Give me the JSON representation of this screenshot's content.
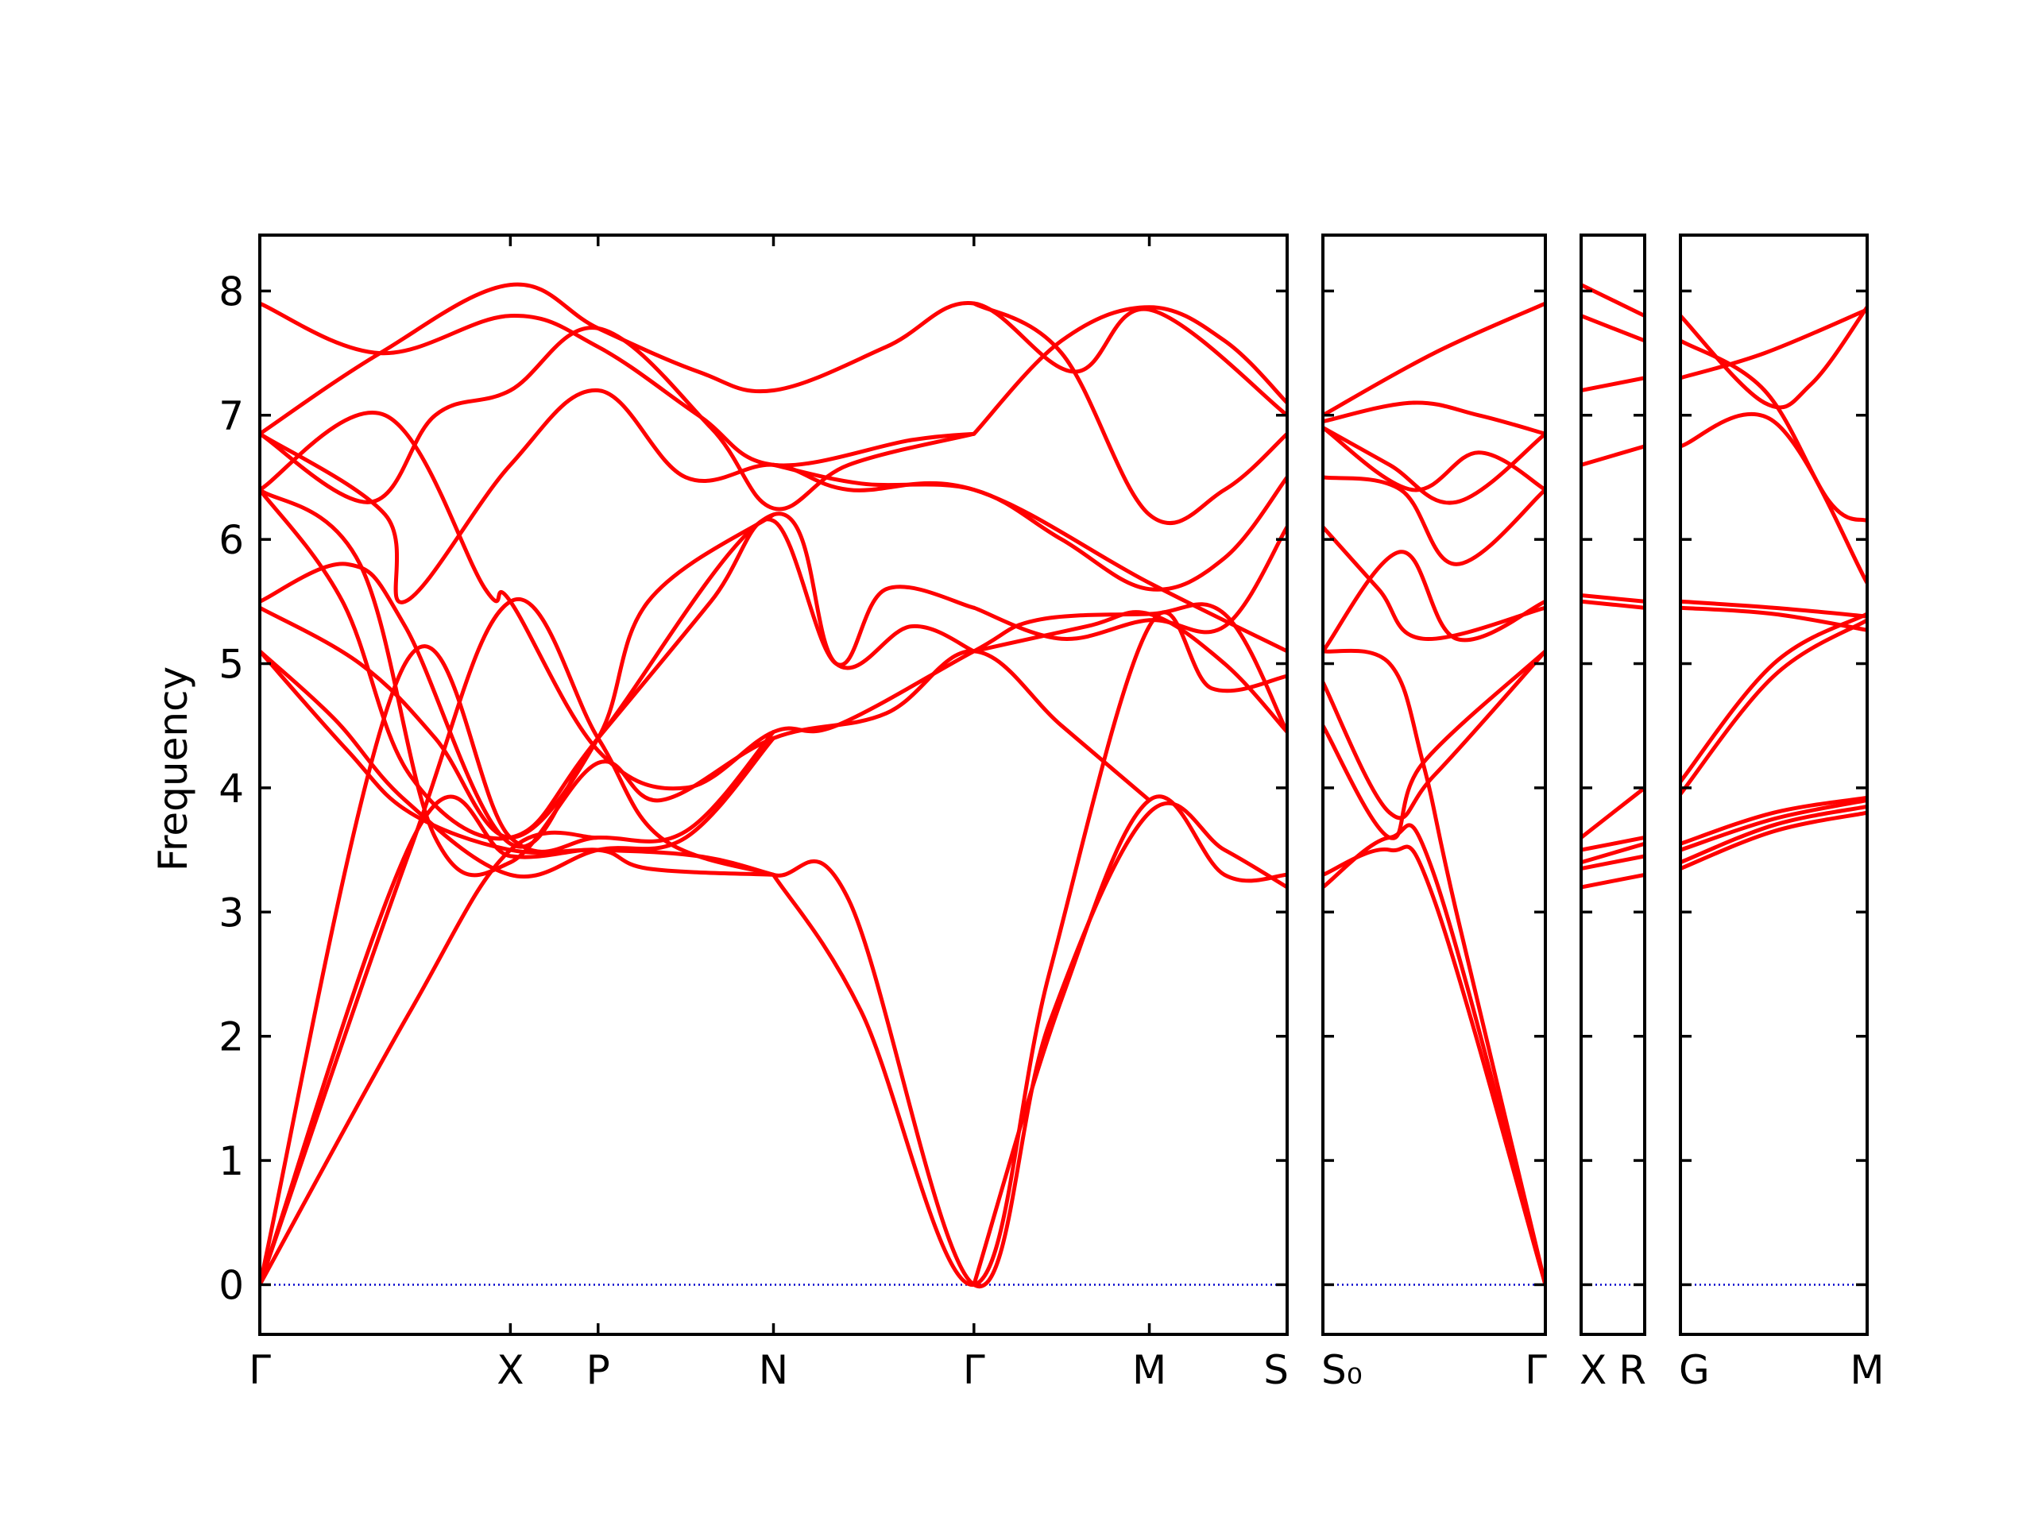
{
  "chart_data": {
    "type": "line",
    "title": "",
    "xlabel": "",
    "ylabel": "Frequency",
    "ylim": [
      -0.4,
      8.45
    ],
    "yticks": [
      0,
      1,
      2,
      3,
      4,
      5,
      6,
      7,
      8
    ],
    "zero_line_color": "#0000cc",
    "band_color": "#ff0000",
    "panels": [
      {
        "name": "panel-1",
        "kpoints": [
          {
            "label": "Γ",
            "pos": 0.0
          },
          {
            "label": "X",
            "pos": 1.0
          },
          {
            "label": "P",
            "pos": 1.35
          },
          {
            "label": "N",
            "pos": 2.05
          },
          {
            "label": "Γ",
            "pos": 2.85
          },
          {
            "label": "M",
            "pos": 3.55
          },
          {
            "label": "S",
            "pos": 4.1
          }
        ],
        "bands": [
          {
            "x": [
              0,
              0.6,
              1.0,
              1.35
            ],
            "y": [
              0,
              2.2,
              3.5,
              3.6
            ]
          },
          {
            "x": [
              0,
              0.64,
              1.0,
              1.35,
              1.55,
              2.05
            ],
            "y": [
              0,
              3.7,
              3.45,
              3.5,
              3.35,
              3.3
            ]
          },
          {
            "x": [
              0,
              0.58,
              1.0,
              1.35,
              1.7,
              2.05
            ],
            "y": [
              0,
              5.0,
              3.6,
              3.6,
              3.65,
              4.45
            ]
          },
          {
            "x": [
              0,
              0.33,
              0.6,
              1.0,
              1.35,
              2.05,
              2.3,
              2.6,
              2.85
            ],
            "y": [
              6.4,
              5.5,
              4.1,
              3.6,
              4.4,
              6.2,
              5.0,
              5.3,
              5.1
            ]
          },
          {
            "x": [
              0,
              0.3,
              0.58,
              1.0,
              1.35,
              1.7,
              2.05
            ],
            "y": [
              5.1,
              4.55,
              3.9,
              3.3,
              3.5,
              3.6,
              4.4
            ]
          },
          {
            "x": [
              0,
              0.4,
              0.7,
              1.0,
              1.35,
              1.6,
              2.05,
              2.5,
              2.85,
              3.2,
              3.55
            ],
            "y": [
              6.4,
              5.8,
              3.6,
              3.4,
              4.2,
              3.9,
              4.4,
              4.6,
              5.1,
              4.5,
              3.9
            ]
          },
          {
            "x": [
              0,
              0.6,
              1.0,
              1.35,
              1.6,
              2.05
            ],
            "y": [
              0,
              3.5,
              5.5,
              4.4,
              3.6,
              3.3
            ]
          },
          {
            "x": [
              0,
              0.4,
              0.7,
              1.0,
              1.35,
              1.55,
              2.05
            ],
            "y": [
              5.45,
              5.0,
              4.4,
              3.6,
              4.4,
              5.5,
              6.2
            ]
          },
          {
            "x": [
              0,
              0.35,
              0.58,
              1.0,
              1.35,
              1.8,
              2.05,
              2.3,
              2.5,
              2.85
            ],
            "y": [
              5.5,
              5.8,
              5.3,
              3.55,
              4.4,
              5.5,
              6.15,
              5.0,
              5.6,
              5.45
            ]
          },
          {
            "x": [
              0,
              0.5,
              0.58,
              1.0,
              1.35,
              1.7,
              2.05,
              2.35,
              2.85,
              3.55,
              4.1
            ],
            "y": [
              6.85,
              6.2,
              5.5,
              6.6,
              7.2,
              6.5,
              6.6,
              6.4,
              6.4,
              5.65,
              5.1
            ]
          },
          {
            "x": [
              0,
              0.5,
              0.9,
              1.0,
              1.35,
              1.7,
              2.05,
              2.3,
              2.85,
              3.1,
              3.55,
              3.85,
              4.1
            ],
            "y": [
              6.4,
              7.0,
              5.6,
              5.5,
              4.3,
              4.0,
              4.45,
              4.5,
              5.1,
              5.35,
              5.4,
              5.4,
              4.45
            ]
          },
          {
            "x": [
              0,
              0.44,
              0.7,
              1.0,
              1.35,
              1.8,
              2.05,
              2.35,
              2.85
            ],
            "y": [
              6.85,
              6.3,
              7.0,
              7.2,
              7.7,
              6.9,
              6.25,
              6.6,
              6.85
            ]
          },
          {
            "x": [
              0,
              0.48,
              1.0,
              1.35,
              1.75,
              2.05,
              2.6,
              2.85
            ],
            "y": [
              7.9,
              7.5,
              7.8,
              7.55,
              7.0,
              6.6,
              6.8,
              6.85
            ]
          },
          {
            "x": [
              0,
              0.48,
              1.0,
              1.35,
              1.75,
              2.05,
              2.5,
              2.85,
              3.25,
              3.55,
              4.1
            ],
            "y": [
              6.85,
              7.5,
              8.05,
              7.7,
              7.35,
              7.2,
              7.55,
              7.9,
              7.35,
              7.85,
              7.0
            ]
          },
          {
            "x": [
              0,
              0.35,
              0.6,
              1.0,
              1.35,
              1.75,
              2.05,
              2.35,
              2.85,
              3.15,
              3.55,
              3.85,
              4.1
            ],
            "y": [
              5.1,
              4.3,
              3.8,
              3.5,
              3.5,
              3.45,
              3.3,
              3.1,
              0,
              2.1,
              3.8,
              3.5,
              3.2
            ]
          },
          {
            "x": [
              2.85,
              3.2,
              3.55,
              3.85,
              4.1
            ],
            "y": [
              0,
              2.3,
              3.9,
              3.3,
              3.3
            ]
          },
          {
            "x": [
              2.85,
              3.3,
              3.55,
              3.85,
              4.1
            ],
            "y": [
              5.1,
              5.3,
              5.4,
              5.0,
              4.45
            ]
          },
          {
            "x": [
              2.05,
              2.4,
              2.85,
              3.2,
              3.55,
              3.85,
              4.1
            ],
            "y": [
              6.6,
              6.45,
              6.4,
              6.0,
              5.6,
              5.85,
              6.5
            ]
          },
          {
            "x": [
              2.85,
              3.2,
              3.55,
              3.85,
              4.1
            ],
            "y": [
              7.9,
              7.5,
              6.2,
              6.4,
              6.85
            ]
          },
          {
            "x": [
              2.05,
              2.4,
              2.85,
              3.15,
              3.55,
              3.8,
              4.1
            ],
            "y": [
              3.3,
              2.2,
              0,
              2.5,
              5.3,
              4.8,
              4.9
            ]
          },
          {
            "x": [
              2.85,
              3.2,
              3.55,
              3.85,
              4.1
            ],
            "y": [
              5.45,
              5.2,
              5.35,
              5.3,
              6.1
            ]
          },
          {
            "x": [
              2.85,
              3.2,
              3.55,
              3.85,
              4.1
            ],
            "y": [
              6.85,
              7.6,
              7.87,
              7.6,
              7.1
            ]
          }
        ]
      },
      {
        "name": "panel-2",
        "kpoints": [
          {
            "label": "S₀",
            "pos": 0.0
          },
          {
            "label": "Γ",
            "pos": 1.0
          }
        ],
        "bands": [
          {
            "x": [
              0,
              0.3,
              0.5,
              1.0
            ],
            "y": [
              3.2,
              3.6,
              3.3,
              0
            ]
          },
          {
            "x": [
              0,
              0.3,
              0.5,
              1.0
            ],
            "y": [
              3.3,
              3.5,
              3.1,
              0
            ]
          },
          {
            "x": [
              0,
              0.3,
              0.45,
              1.0
            ],
            "y": [
              4.5,
              3.6,
              4.2,
              5.1
            ]
          },
          {
            "x": [
              0,
              0.3,
              0.5,
              1.0
            ],
            "y": [
              4.85,
              3.8,
              4.1,
              5.1
            ]
          },
          {
            "x": [
              0,
              0.3,
              0.45,
              0.6,
              1.0
            ],
            "y": [
              5.1,
              5.0,
              4.2,
              3.0,
              0
            ]
          },
          {
            "x": [
              0,
              0.35,
              0.6,
              1.0
            ],
            "y": [
              5.1,
              5.9,
              5.2,
              5.5
            ]
          },
          {
            "x": [
              0,
              0.25,
              0.45,
              1.0
            ],
            "y": [
              6.1,
              5.6,
              5.2,
              5.45
            ]
          },
          {
            "x": [
              0,
              0.35,
              0.6,
              1.0
            ],
            "y": [
              6.5,
              6.4,
              5.8,
              6.4
            ]
          },
          {
            "x": [
              0,
              0.3,
              0.6,
              1.0
            ],
            "y": [
              6.9,
              6.6,
              6.3,
              6.85
            ]
          },
          {
            "x": [
              0,
              0.4,
              0.7,
              1.0
            ],
            "y": [
              6.95,
              7.1,
              7.0,
              6.85
            ]
          },
          {
            "x": [
              0,
              0.4,
              0.7,
              1.0
            ],
            "y": [
              6.9,
              6.4,
              6.7,
              6.4
            ]
          },
          {
            "x": [
              0,
              0.5,
              1.0
            ],
            "y": [
              7.0,
              7.5,
              7.9
            ]
          }
        ]
      },
      {
        "name": "panel-3",
        "kpoints": [
          {
            "label": "X",
            "pos": 0.0
          },
          {
            "label": "R",
            "pos": 1.0
          }
        ],
        "bands": [
          {
            "x": [
              0,
              1
            ],
            "y": [
              3.2,
              3.3
            ]
          },
          {
            "x": [
              0,
              1
            ],
            "y": [
              3.35,
              3.45
            ]
          },
          {
            "x": [
              0,
              1
            ],
            "y": [
              3.4,
              3.55
            ]
          },
          {
            "x": [
              0,
              1
            ],
            "y": [
              3.5,
              3.6
            ]
          },
          {
            "x": [
              0,
              1
            ],
            "y": [
              3.6,
              4.0
            ]
          },
          {
            "x": [
              0,
              1
            ],
            "y": [
              5.5,
              5.45
            ]
          },
          {
            "x": [
              0,
              1
            ],
            "y": [
              5.55,
              5.5
            ]
          },
          {
            "x": [
              0,
              1
            ],
            "y": [
              6.6,
              6.75
            ]
          },
          {
            "x": [
              0,
              1
            ],
            "y": [
              7.2,
              7.3
            ]
          },
          {
            "x": [
              0,
              1
            ],
            "y": [
              7.8,
              7.6
            ]
          },
          {
            "x": [
              0,
              1
            ],
            "y": [
              8.05,
              7.8
            ]
          }
        ]
      },
      {
        "name": "panel-4",
        "kpoints": [
          {
            "label": "G",
            "pos": 0.0
          },
          {
            "label": "M",
            "pos": 1.0
          }
        ],
        "bands": [
          {
            "x": [
              0,
              0.5,
              1.0
            ],
            "y": [
              3.35,
              3.65,
              3.8
            ]
          },
          {
            "x": [
              0,
              0.5,
              1.0
            ],
            "y": [
              3.4,
              3.7,
              3.85
            ]
          },
          {
            "x": [
              0,
              0.5,
              1.0
            ],
            "y": [
              3.5,
              3.75,
              3.9
            ]
          },
          {
            "x": [
              0,
              0.5,
              1.0
            ],
            "y": [
              3.55,
              3.8,
              3.92
            ]
          },
          {
            "x": [
              0,
              0.5,
              1.0
            ],
            "y": [
              3.95,
              4.9,
              5.35
            ]
          },
          {
            "x": [
              0,
              0.5,
              1.0
            ],
            "y": [
              4.05,
              5.0,
              5.4
            ]
          },
          {
            "x": [
              0,
              0.5,
              1.0
            ],
            "y": [
              5.45,
              5.4,
              5.27
            ]
          },
          {
            "x": [
              0,
              0.5,
              1.0
            ],
            "y": [
              5.5,
              5.45,
              5.38
            ]
          },
          {
            "x": [
              0,
              0.5,
              1.0
            ],
            "y": [
              6.75,
              6.95,
              5.65
            ]
          },
          {
            "x": [
              0,
              0.45,
              1.0
            ],
            "y": [
              7.3,
              7.5,
              7.85
            ]
          },
          {
            "x": [
              0,
              0.45,
              0.7,
              1.0
            ],
            "y": [
              7.8,
              7.1,
              7.25,
              7.87
            ]
          },
          {
            "x": [
              0,
              0.45,
              0.8,
              1.0
            ],
            "y": [
              7.6,
              7.2,
              6.3,
              6.15
            ]
          }
        ]
      }
    ]
  }
}
